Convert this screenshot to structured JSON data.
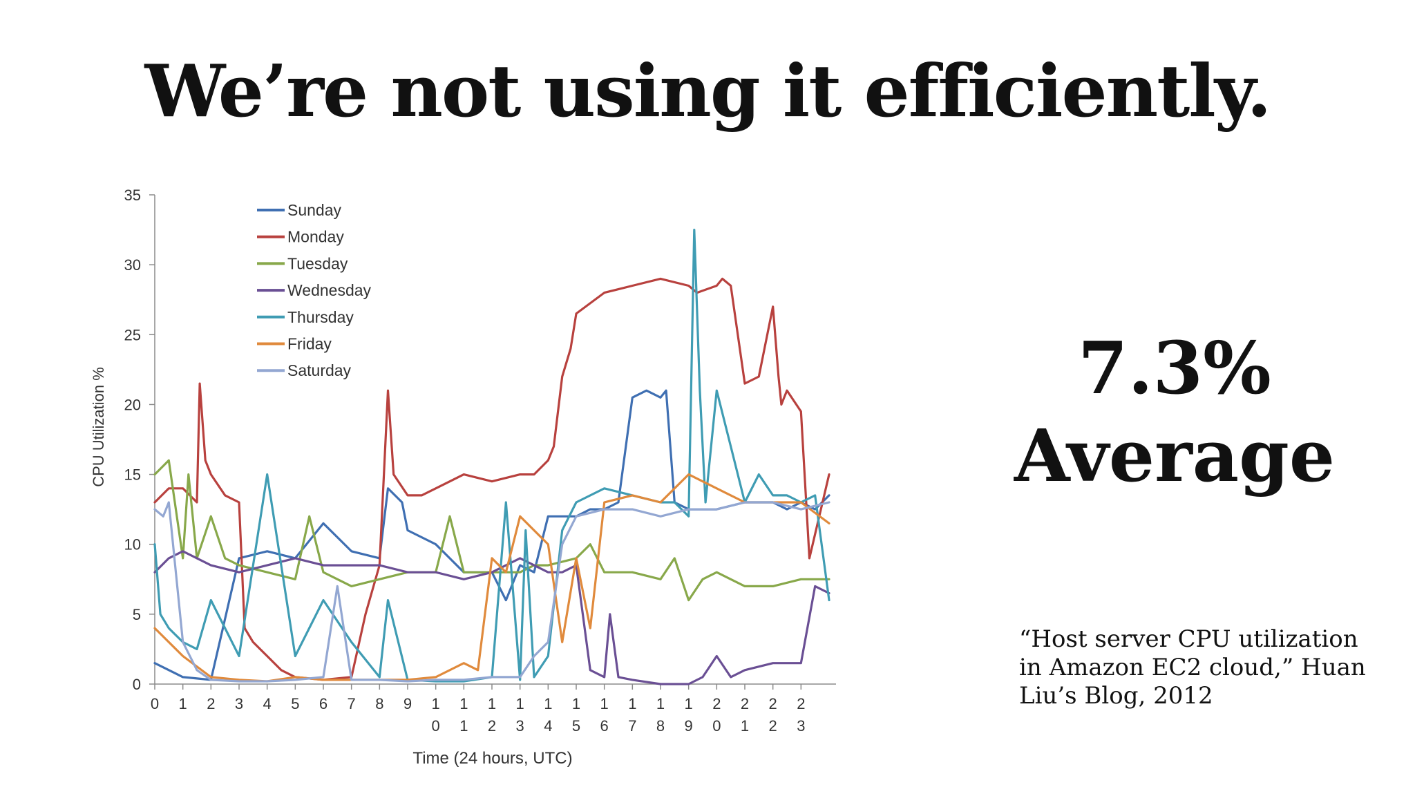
{
  "title": "We’re not using it efficiently.",
  "stat": {
    "value": "7.3%",
    "label": "Average"
  },
  "citation": "“Host server CPU utilization in Amazon EC2 cloud,” Huan Liu’s Blog, 2012",
  "chart_data": {
    "type": "line",
    "xlabel": "Time (24 hours, UTC)",
    "ylabel": "CPU Utilization %",
    "ylim": [
      0,
      35
    ],
    "xlim": [
      0,
      24
    ],
    "yticks": [
      "0",
      "5",
      "10",
      "15",
      "20",
      "25",
      "30",
      "35"
    ],
    "xticks": [
      "0",
      "1",
      "2",
      "3",
      "4",
      "5",
      "6",
      "7",
      "8",
      "9",
      "10",
      "11",
      "12",
      "13",
      "14",
      "15",
      "16",
      "17",
      "18",
      "19",
      "20",
      "21",
      "22",
      "23"
    ],
    "legend_position": "top-left",
    "grid": false,
    "series": [
      {
        "name": "Sunday",
        "color": "#3f6fb2",
        "x": [
          0,
          1,
          2,
          3,
          4,
          5,
          6,
          7,
          8,
          8.3,
          8.8,
          9,
          10,
          11,
          12,
          12.5,
          13,
          13.5,
          14,
          14.5,
          15,
          15.5,
          16,
          16.5,
          17,
          17.5,
          18,
          18.2,
          18.5,
          19,
          19.5,
          20,
          21,
          22,
          22.5,
          23,
          23.5,
          24
        ],
        "y": [
          1.5,
          0.5,
          0.3,
          9,
          9.5,
          9,
          11.5,
          9.5,
          9,
          14,
          13,
          11,
          10,
          8,
          8,
          6,
          8.5,
          8,
          12,
          12,
          12,
          12.5,
          12.5,
          13,
          20.5,
          21,
          20.5,
          21,
          13,
          12.5,
          12.5,
          12.5,
          13,
          13,
          12.5,
          13,
          12.5,
          13.5
        ]
      },
      {
        "name": "Monday",
        "color": "#b8413e",
        "x": [
          0,
          0.5,
          1,
          1.5,
          1.6,
          1.8,
          2,
          2.5,
          3,
          3.2,
          3.5,
          4,
          4.5,
          5,
          6,
          7,
          7.5,
          8,
          8.3,
          8.5,
          9,
          9.5,
          10,
          11,
          12,
          13,
          13.5,
          14,
          14.2,
          14.5,
          14.8,
          15,
          16,
          17,
          18,
          19,
          19.3,
          20,
          20.2,
          20.5,
          21,
          21.5,
          22,
          22.2,
          22.3,
          22.5,
          23,
          23.3,
          24
        ],
        "y": [
          13,
          14,
          14,
          13,
          21.5,
          16,
          15,
          13.5,
          13,
          4,
          3,
          2,
          1,
          0.5,
          0.3,
          0.5,
          5,
          8.5,
          21,
          15,
          13.5,
          13.5,
          14,
          15,
          14.5,
          15,
          15,
          16,
          17,
          22,
          24,
          26.5,
          28,
          28.5,
          29,
          28.5,
          28,
          28.5,
          29,
          28.5,
          21.5,
          22,
          27,
          22,
          20,
          21,
          19.5,
          9,
          15
        ]
      },
      {
        "name": "Tuesday",
        "color": "#88a84a",
        "x": [
          0,
          0.5,
          1,
          1.2,
          1.5,
          2,
          2.5,
          3,
          4,
          5,
          5.5,
          6,
          7,
          8,
          9,
          10,
          10.5,
          11,
          12,
          13,
          13.5,
          14,
          15,
          15.5,
          16,
          17,
          18,
          18.5,
          19,
          19.5,
          20,
          21,
          22,
          23,
          24
        ],
        "y": [
          15,
          16,
          9,
          15,
          9,
          12,
          9,
          8.5,
          8,
          7.5,
          12,
          8,
          7,
          7.5,
          8,
          8,
          12,
          8,
          8,
          8,
          8.5,
          8.5,
          9,
          10,
          8,
          8,
          7.5,
          9,
          6,
          7.5,
          8,
          7,
          7,
          7.5,
          7.5
        ]
      },
      {
        "name": "Wednesday",
        "color": "#6a4f94",
        "x": [
          0,
          0.5,
          1,
          2,
          3,
          4,
          5,
          6,
          7,
          8,
          9,
          10,
          11,
          12,
          13,
          14,
          14.5,
          15,
          15.5,
          16,
          16.2,
          16.5,
          17,
          18,
          19,
          19.5,
          20,
          20.5,
          21,
          22,
          23,
          23.5,
          24
        ],
        "y": [
          8,
          9,
          9.5,
          8.5,
          8,
          8.5,
          9,
          8.5,
          8.5,
          8.5,
          8,
          8,
          7.5,
          8,
          9,
          8,
          8,
          8.5,
          1,
          0.5,
          5,
          0.5,
          0.3,
          0,
          0,
          0.5,
          2,
          0.5,
          1,
          1.5,
          1.5,
          7,
          6.5
        ]
      },
      {
        "name": "Thursday",
        "color": "#3f9cb3",
        "x": [
          0,
          0.2,
          0.5,
          1,
          1.5,
          2,
          3,
          4,
          5,
          6,
          7,
          8,
          8.3,
          9,
          10,
          11,
          12,
          12.5,
          13,
          13.2,
          13.5,
          14,
          14.5,
          15,
          16,
          17,
          18,
          18.5,
          19,
          19.2,
          19.4,
          19.6,
          20,
          20.5,
          21,
          21.5,
          22,
          22.5,
          23,
          23.5,
          24
        ],
        "y": [
          10,
          5,
          4,
          3,
          2.5,
          6,
          2,
          15,
          2,
          6,
          3,
          0.5,
          6,
          0.3,
          0.2,
          0.2,
          0.5,
          13,
          0.3,
          11,
          0.5,
          2,
          11,
          13,
          14,
          13.5,
          13,
          13,
          12,
          32.5,
          21,
          13,
          21,
          17,
          13,
          15,
          13.5,
          13.5,
          13,
          13.5,
          6
        ]
      },
      {
        "name": "Friday",
        "color": "#e08a3c",
        "x": [
          0,
          1,
          2,
          3,
          4,
          5,
          6,
          7,
          8,
          9,
          10,
          11,
          11.5,
          12,
          12.5,
          13,
          14,
          14.5,
          15,
          15.5,
          16,
          17,
          18,
          19,
          20,
          20.5,
          21,
          22,
          23,
          24
        ],
        "y": [
          4,
          2,
          0.5,
          0.3,
          0.2,
          0.5,
          0.3,
          0.3,
          0.3,
          0.3,
          0.5,
          1.5,
          1,
          9,
          8,
          12,
          10,
          3,
          9,
          4,
          13,
          13.5,
          13,
          15,
          14,
          13.5,
          13,
          13,
          13,
          11.5
        ]
      },
      {
        "name": "Saturday",
        "color": "#93a7d2",
        "x": [
          0,
          0.3,
          0.5,
          1,
          1.5,
          2,
          3,
          4,
          5,
          6,
          6.5,
          7,
          8,
          9,
          10,
          11,
          12,
          13,
          13.5,
          14,
          14.5,
          15,
          16,
          17,
          18,
          19,
          20,
          21,
          22,
          23,
          24
        ],
        "y": [
          12.5,
          12,
          13,
          3,
          1,
          0.3,
          0.2,
          0.2,
          0.3,
          0.5,
          7,
          0.3,
          0.3,
          0.2,
          0.3,
          0.3,
          0.5,
          0.5,
          2,
          3,
          10,
          12,
          12.5,
          12.5,
          12,
          12.5,
          12.5,
          13,
          13,
          12.5,
          13
        ]
      }
    ]
  }
}
